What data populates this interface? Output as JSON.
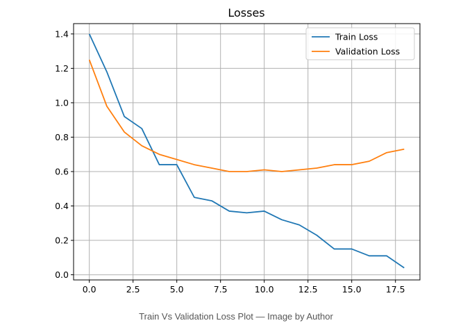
{
  "chart_data": {
    "type": "line",
    "title": "Losses",
    "xlabel": "",
    "ylabel": "",
    "x": [
      0,
      1,
      2,
      3,
      4,
      5,
      6,
      7,
      8,
      9,
      10,
      11,
      12,
      13,
      14,
      15,
      16,
      17,
      18
    ],
    "xlim": [
      -0.9,
      18.9
    ],
    "ylim": [
      -0.03,
      1.46
    ],
    "xticks": [
      0.0,
      2.5,
      5.0,
      7.5,
      10.0,
      12.5,
      15.0,
      17.5
    ],
    "xtick_labels": [
      "0.0",
      "2.5",
      "5.0",
      "7.5",
      "10.0",
      "12.5",
      "15.0",
      "17.5"
    ],
    "yticks": [
      0.0,
      0.2,
      0.4,
      0.6,
      0.8,
      1.0,
      1.2,
      1.4
    ],
    "ytick_labels": [
      "0.0",
      "0.2",
      "0.4",
      "0.6",
      "0.8",
      "1.0",
      "1.2",
      "1.4"
    ],
    "grid": true,
    "legend_position": "top-right",
    "series": [
      {
        "name": "Train Loss",
        "color": "#1f77b4",
        "values": [
          1.4,
          1.18,
          0.92,
          0.85,
          0.64,
          0.64,
          0.45,
          0.43,
          0.37,
          0.36,
          0.37,
          0.32,
          0.29,
          0.23,
          0.15,
          0.15,
          0.11,
          0.11,
          0.04
        ]
      },
      {
        "name": "Validation Loss",
        "color": "#ff7f0e",
        "values": [
          1.25,
          0.98,
          0.83,
          0.75,
          0.7,
          0.67,
          0.64,
          0.62,
          0.6,
          0.6,
          0.61,
          0.6,
          0.61,
          0.62,
          0.64,
          0.64,
          0.66,
          0.71,
          0.73
        ]
      }
    ]
  },
  "caption": "Train Vs Validation Loss Plot — Image by Author"
}
